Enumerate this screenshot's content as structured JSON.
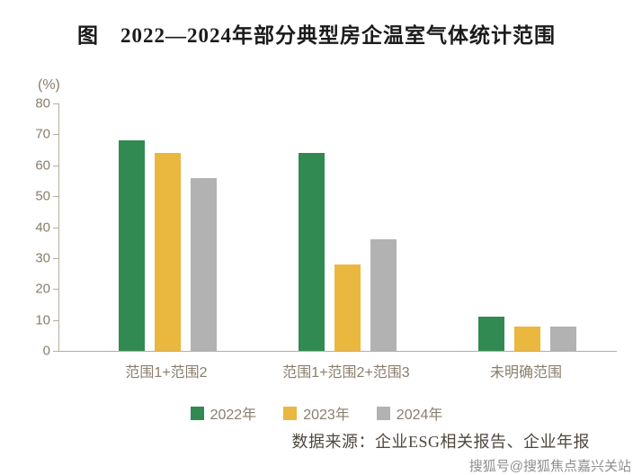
{
  "page": {
    "title": "图　2022—2024年部分典型房企温室气体统计范围",
    "source": "数据来源：企业ESG相关报告、企业年报",
    "watermark": "搜狐号@搜狐焦点嘉兴关站"
  },
  "chart_data": {
    "type": "bar",
    "title": "图 2022—2024年部分典型房企温室气体统计范围",
    "unit_label": "(%)",
    "categories": [
      "范围1+范围2",
      "范围1+范围2+范围3",
      "未明确范围"
    ],
    "series": [
      {
        "name": "2022年",
        "color": "#318a51",
        "values": [
          68,
          64,
          11
        ]
      },
      {
        "name": "2023年",
        "color": "#eab73f",
        "values": [
          64,
          28,
          8
        ]
      },
      {
        "name": "2024年",
        "color": "#b2b2b2",
        "values": [
          56,
          36,
          8
        ]
      }
    ],
    "ylim": [
      0,
      80
    ],
    "ytick_step": 10,
    "grid": false,
    "legend_position": "bottom"
  }
}
